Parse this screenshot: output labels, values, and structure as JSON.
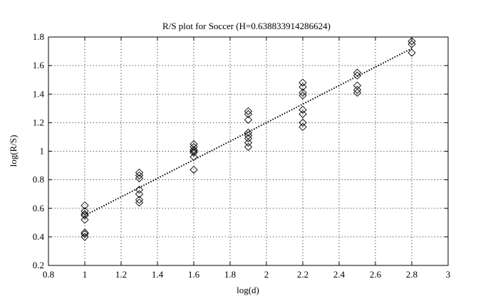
{
  "chart_data": {
    "type": "scatter",
    "title": "R/S plot for Soccer (H=0.638833914286624)",
    "xlabel": "log(d)",
    "ylabel": "log(R/S)",
    "xlim": [
      0.8,
      3
    ],
    "ylim": [
      0.2,
      1.8
    ],
    "xticks": [
      0.8,
      1,
      1.2,
      1.4,
      1.6,
      1.8,
      2,
      2.2,
      2.4,
      2.6,
      2.8,
      3
    ],
    "xtick_labels": [
      "0.8",
      "1",
      "1.2",
      "1.4",
      "1.6",
      "1.8",
      "2",
      "2.2",
      "2.4",
      "2.6",
      "2.8",
      "3"
    ],
    "yticks": [
      0.2,
      0.4,
      0.6,
      0.8,
      1,
      1.2,
      1.4,
      1.6,
      1.8
    ],
    "ytick_labels": [
      "0.2",
      "0.4",
      "0.6",
      "0.8",
      "1",
      "1.2",
      "1.4",
      "1.6",
      "1.8"
    ],
    "grid": true,
    "marker": "diamond",
    "points": [
      {
        "x": 1.0,
        "y": 0.62
      },
      {
        "x": 1.0,
        "y": 0.58
      },
      {
        "x": 1.0,
        "y": 0.56
      },
      {
        "x": 1.0,
        "y": 0.55
      },
      {
        "x": 1.0,
        "y": 0.52
      },
      {
        "x": 1.0,
        "y": 0.43
      },
      {
        "x": 1.0,
        "y": 0.42
      },
      {
        "x": 1.0,
        "y": 0.4
      },
      {
        "x": 1.3,
        "y": 0.85
      },
      {
        "x": 1.3,
        "y": 0.83
      },
      {
        "x": 1.3,
        "y": 0.81
      },
      {
        "x": 1.3,
        "y": 0.73
      },
      {
        "x": 1.3,
        "y": 0.7
      },
      {
        "x": 1.3,
        "y": 0.66
      },
      {
        "x": 1.3,
        "y": 0.64
      },
      {
        "x": 1.6,
        "y": 1.05
      },
      {
        "x": 1.6,
        "y": 1.03
      },
      {
        "x": 1.6,
        "y": 1.01
      },
      {
        "x": 1.6,
        "y": 1.0
      },
      {
        "x": 1.6,
        "y": 0.99
      },
      {
        "x": 1.6,
        "y": 0.96
      },
      {
        "x": 1.6,
        "y": 0.87
      },
      {
        "x": 1.9,
        "y": 1.28
      },
      {
        "x": 1.9,
        "y": 1.26
      },
      {
        "x": 1.9,
        "y": 1.22
      },
      {
        "x": 1.9,
        "y": 1.13
      },
      {
        "x": 1.9,
        "y": 1.11
      },
      {
        "x": 1.9,
        "y": 1.09
      },
      {
        "x": 1.9,
        "y": 1.06
      },
      {
        "x": 1.9,
        "y": 1.03
      },
      {
        "x": 2.2,
        "y": 1.48
      },
      {
        "x": 2.2,
        "y": 1.45
      },
      {
        "x": 2.2,
        "y": 1.41
      },
      {
        "x": 2.2,
        "y": 1.39
      },
      {
        "x": 2.2,
        "y": 1.29
      },
      {
        "x": 2.2,
        "y": 1.26
      },
      {
        "x": 2.2,
        "y": 1.2
      },
      {
        "x": 2.2,
        "y": 1.17
      },
      {
        "x": 2.5,
        "y": 1.55
      },
      {
        "x": 2.5,
        "y": 1.53
      },
      {
        "x": 2.5,
        "y": 1.46
      },
      {
        "x": 2.5,
        "y": 1.43
      },
      {
        "x": 2.5,
        "y": 1.41
      },
      {
        "x": 2.8,
        "y": 1.77
      },
      {
        "x": 2.8,
        "y": 1.75
      },
      {
        "x": 2.8,
        "y": 1.69
      }
    ],
    "fit_line": {
      "style": "dotted",
      "x": [
        1.0,
        2.8
      ],
      "y": [
        0.55,
        1.72
      ]
    }
  }
}
